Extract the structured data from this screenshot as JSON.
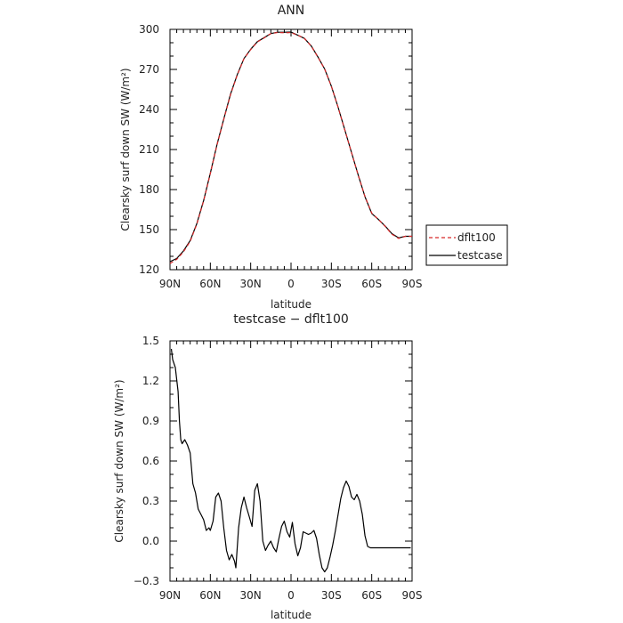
{
  "chart_data": [
    {
      "type": "line",
      "title": "ANN",
      "xlabel": "latitude",
      "ylabel": "Clearsky surf down SW (W/m²)",
      "xlim": [
        -90,
        90
      ],
      "ylim": [
        120,
        300
      ],
      "x_ticks": [
        -90,
        -60,
        -30,
        0,
        30,
        60,
        90
      ],
      "x_tick_labels": [
        "90N",
        "60N",
        "30N",
        "0",
        "30S",
        "60S",
        "90S"
      ],
      "y_ticks": [
        120,
        150,
        180,
        210,
        240,
        270,
        300
      ],
      "y_tick_labels": [
        "120",
        "150",
        "180",
        "210",
        "240",
        "270",
        "300"
      ],
      "legend_position": "right",
      "x": [
        -90,
        -85,
        -80,
        -75,
        -70,
        -65,
        -60,
        -55,
        -50,
        -45,
        -40,
        -35,
        -30,
        -25,
        -20,
        -15,
        -10,
        -5,
        0,
        5,
        10,
        15,
        20,
        25,
        30,
        35,
        40,
        45,
        50,
        55,
        60,
        65,
        70,
        75,
        80,
        85,
        90
      ],
      "series": [
        {
          "name": "dflt100",
          "color": "#d62728",
          "dashed": true,
          "values": [
            124.6,
            127.7,
            133.3,
            141.2,
            154.2,
            171.5,
            192.0,
            213.6,
            232.5,
            251.1,
            265.8,
            278.0,
            284.9,
            290.6,
            293.6,
            296.8,
            297.7,
            297.5,
            297.6,
            295.6,
            293.2,
            287.5,
            279.2,
            270.2,
            257.4,
            241.6,
            224.7,
            207.6,
            190.5,
            174.8,
            162.4,
            157.6,
            152.4,
            146.6,
            143.4,
            145.0,
            145.0
          ]
        },
        {
          "name": "testcase",
          "color": "#000000",
          "dashed": false,
          "values": [
            126.0,
            128.4,
            134.0,
            141.8,
            154.6,
            171.8,
            192.2,
            213.9,
            232.8,
            251.5,
            266.1,
            278.1,
            285.1,
            290.8,
            293.8,
            296.9,
            297.9,
            297.9,
            298.0,
            295.6,
            293.2,
            287.6,
            279.4,
            270.3,
            257.5,
            241.7,
            224.8,
            207.7,
            190.6,
            174.6,
            162.1,
            157.6,
            152.7,
            147.0,
            143.8,
            145.0,
            145.0
          ]
        }
      ]
    },
    {
      "type": "line",
      "title": "testcase − dflt100",
      "xlabel": "latitude",
      "ylabel": "Clearsky surf down SW (W/m²)",
      "xlim": [
        -90,
        90
      ],
      "ylim": [
        -0.3,
        1.5
      ],
      "x_ticks": [
        -90,
        -60,
        -30,
        0,
        30,
        60,
        90
      ],
      "x_tick_labels": [
        "90N",
        "60N",
        "30N",
        "0",
        "30S",
        "60S",
        "90S"
      ],
      "y_ticks": [
        -0.3,
        0.0,
        0.3,
        0.6,
        0.9,
        1.2,
        1.5
      ],
      "y_tick_labels": [
        "−0.3",
        "0.0",
        "0.3",
        "0.6",
        "0.9",
        "1.2",
        "1.5"
      ],
      "x": [
        -89,
        -88,
        -86,
        -84,
        -83,
        -82,
        -81,
        -79,
        -77,
        -75,
        -73,
        -71,
        -69,
        -67,
        -65,
        -63,
        -61,
        -60,
        -58,
        -56,
        -54,
        -52,
        -50,
        -48,
        -46,
        -44,
        -42,
        -41,
        -39,
        -37,
        -35,
        -33,
        -31,
        -29,
        -27,
        -25,
        -23,
        -21,
        -19,
        -17,
        -15,
        -13,
        -11,
        -9,
        -7,
        -5,
        -3,
        -1,
        1,
        3,
        5,
        7,
        9,
        11,
        13,
        15,
        17,
        19,
        21,
        23,
        25,
        27,
        29,
        31,
        33,
        35,
        37,
        39,
        41,
        43,
        45,
        47,
        49,
        51,
        53,
        55,
        57,
        59,
        61,
        63,
        65,
        67,
        69,
        71,
        73,
        75,
        77,
        79,
        81,
        83,
        85,
        87,
        89
      ],
      "series": [
        {
          "name": "",
          "color": "#000000",
          "dashed": false,
          "values": [
            1.44,
            1.36,
            1.3,
            1.12,
            0.9,
            0.76,
            0.73,
            0.76,
            0.72,
            0.66,
            0.43,
            0.36,
            0.24,
            0.2,
            0.16,
            0.08,
            0.1,
            0.08,
            0.15,
            0.33,
            0.36,
            0.3,
            0.1,
            -0.07,
            -0.14,
            -0.1,
            -0.15,
            -0.2,
            0.1,
            0.25,
            0.33,
            0.25,
            0.18,
            0.11,
            0.38,
            0.43,
            0.3,
            0.0,
            -0.07,
            -0.03,
            0.0,
            -0.05,
            -0.08,
            0.02,
            0.11,
            0.15,
            0.07,
            0.03,
            0.14,
            -0.02,
            -0.11,
            -0.05,
            0.07,
            0.06,
            0.05,
            0.06,
            0.08,
            0.02,
            -0.1,
            -0.2,
            -0.23,
            -0.2,
            -0.12,
            -0.03,
            0.08,
            0.2,
            0.32,
            0.4,
            0.45,
            0.41,
            0.33,
            0.31,
            0.35,
            0.3,
            0.2,
            0.04,
            -0.04,
            -0.05,
            -0.05,
            -0.05,
            -0.05,
            -0.05,
            -0.05,
            -0.05,
            -0.05,
            -0.05,
            -0.05,
            -0.05,
            -0.05,
            -0.05,
            -0.05,
            -0.05,
            -0.05
          ]
        }
      ]
    }
  ]
}
